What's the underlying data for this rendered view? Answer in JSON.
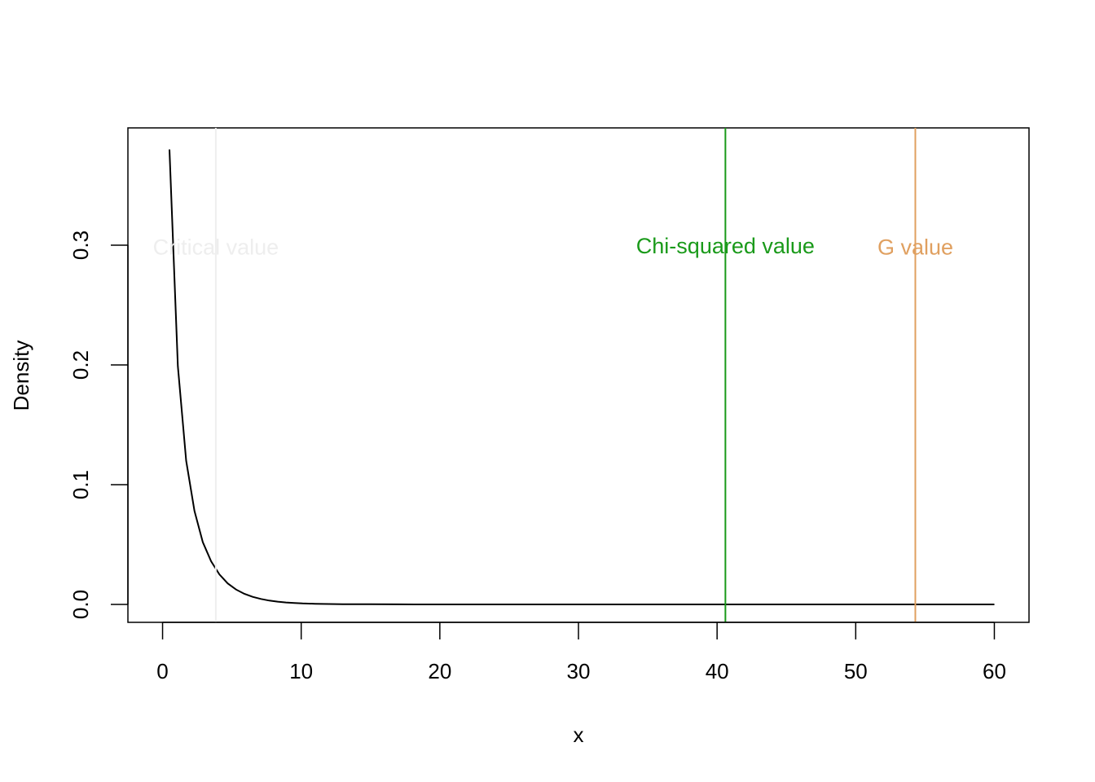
{
  "chart_data": {
    "type": "line",
    "title": "",
    "xlabel": "x",
    "ylabel": "Density",
    "xlim": [
      -2.5,
      62.5
    ],
    "ylim": [
      -0.015,
      0.398
    ],
    "grid": false,
    "x_ticks": [
      0,
      10,
      20,
      30,
      40,
      50,
      60
    ],
    "x_tick_labels": [
      "0",
      "10",
      "20",
      "30",
      "40",
      "50",
      "60"
    ],
    "y_ticks": [
      0.0,
      0.1,
      0.2,
      0.3
    ],
    "y_tick_labels": [
      "0.0",
      "0.1",
      "0.2",
      "0.3"
    ],
    "series": [
      {
        "color": "#000000",
        "x": [
          0.5,
          1.1,
          1.7,
          2.3,
          2.9,
          3.5,
          4.1,
          4.7,
          5.3,
          5.9,
          6.5,
          7.1,
          7.7,
          8.3,
          8.9,
          9.5,
          10.1,
          11,
          12,
          13,
          14,
          15,
          17,
          20,
          25,
          30,
          35,
          40,
          45,
          50,
          55,
          60
        ],
        "y": [
          0.38,
          0.199,
          0.12,
          0.078,
          0.052,
          0.036,
          0.025,
          0.0175,
          0.0124,
          0.0088,
          0.0063,
          0.0045,
          0.0032,
          0.0023,
          0.0016,
          0.0012,
          0.0008,
          0.0005,
          0.0003,
          0.0002,
          0.0001,
          0.0001,
          3e-05,
          0.0,
          0.0,
          0.0,
          0.0,
          0.0,
          0.0,
          0.0,
          0.0,
          0.0
        ]
      }
    ],
    "vlines": [
      {
        "label": "Critical value",
        "x": 3.84,
        "color": "#eeeeee",
        "label_y": 0.299
      },
      {
        "label": "Chi-squared value",
        "x": 40.6,
        "color": "#1a9a1a",
        "label_y": 0.3
      },
      {
        "label": "G value",
        "x": 54.3,
        "color": "#e0a060",
        "label_y": 0.299
      }
    ]
  }
}
